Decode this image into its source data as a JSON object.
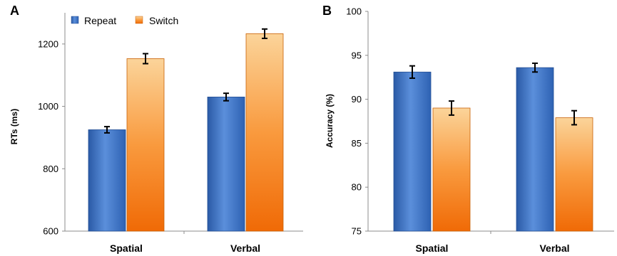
{
  "chart_data": [
    {
      "type": "bar",
      "panel_label": "A",
      "categories": [
        "Spatial",
        "Verbal"
      ],
      "series": [
        {
          "name": "Repeat",
          "values": [
            925,
            1030
          ],
          "errors": [
            10,
            12
          ],
          "color": "#3f73c1"
        },
        {
          "name": "Switch",
          "values": [
            1153,
            1233
          ],
          "errors": [
            16,
            15
          ],
          "color": "#f4811f"
        }
      ],
      "ylabel": "RTs (ms)",
      "ylim": [
        600,
        1300
      ],
      "yticks": [
        "600",
        "800",
        "1000",
        "1200"
      ],
      "legend": "top-left",
      "grid": false
    },
    {
      "type": "bar",
      "panel_label": "B",
      "categories": [
        "Spatial",
        "Verbal"
      ],
      "series": [
        {
          "name": "Repeat",
          "values": [
            93.1,
            93.6
          ],
          "errors": [
            0.7,
            0.5
          ],
          "color": "#3f73c1"
        },
        {
          "name": "Switch",
          "values": [
            89.0,
            87.9
          ],
          "errors": [
            0.8,
            0.8
          ],
          "color": "#f4811f"
        }
      ],
      "ylabel": "Accuracy (%)",
      "ylim": [
        75,
        100
      ],
      "yticks": [
        "75",
        "80",
        "85",
        "90",
        "95",
        "100"
      ],
      "grid": false
    }
  ]
}
